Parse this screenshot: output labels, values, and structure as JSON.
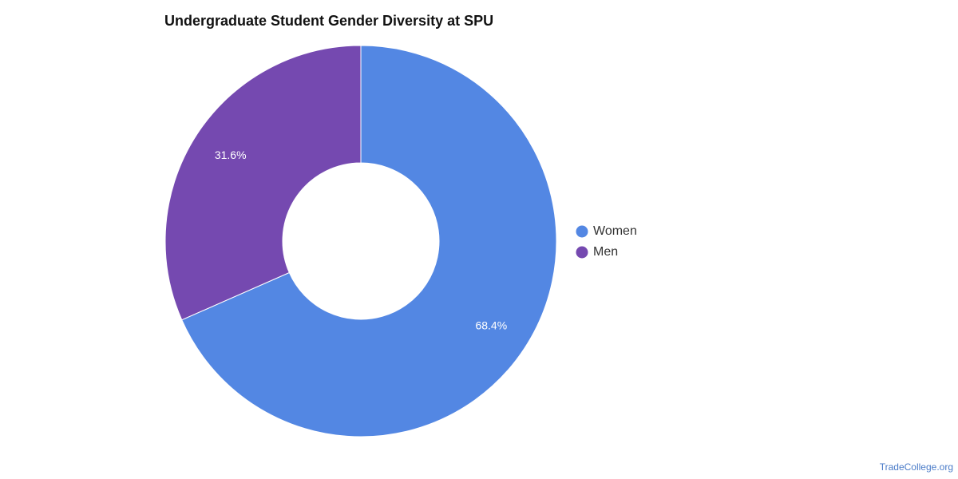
{
  "chart_data": {
    "type": "pie",
    "title": "Undergraduate Student Gender Diversity at SPU",
    "donut": true,
    "categories": [
      "Women",
      "Men"
    ],
    "values": [
      68.4,
      31.6
    ],
    "value_labels": [
      "68.4%",
      "31.6%"
    ],
    "colors": [
      "#5387e3",
      "#7549b0"
    ],
    "legend_position": "right"
  },
  "watermark": "TradeCollege.org"
}
